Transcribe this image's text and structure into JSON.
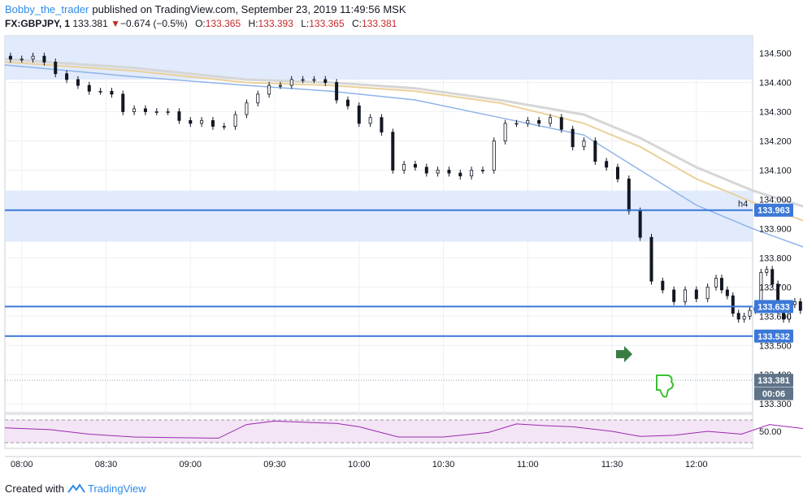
{
  "header": {
    "author": "Bobby_the_trader",
    "published": "published on TradingView.com, September 23, 2019 11:49:56 MSK",
    "symbol": "FX:GBPJPY, 1",
    "last": "133.381",
    "down_arrow": "▼",
    "change": "−0.674 (−0.5%)",
    "o_label": "O:",
    "o_value": "133.365",
    "h_label": "H:",
    "h_value": "133.393",
    "l_label": "L:",
    "l_value": "133.365",
    "c_label": "C:",
    "c_value": "133.381"
  },
  "footer": {
    "created_with": "Created with",
    "brand": "TradingView"
  },
  "colors": {
    "up_candle": "#ffffff",
    "down_candle": "#131722",
    "zone": "#dce8fb",
    "level_line": "#3b78d8",
    "ma_fast": "#8fb3e8",
    "ma_mid": "#ead19a",
    "ma_slow": "#d6d6d6",
    "rsi_line": "#9c27b0",
    "rsi_band": "#f3e5f5",
    "arrow_right": "#3a7d44",
    "thumb_down": "#3dbf35",
    "tag_blue": "#3b78d8",
    "tag_dark": "#5f7389"
  },
  "chart_data": {
    "type": "candlestick",
    "y_ticks": [
      "134.500",
      "134.400",
      "134.300",
      "134.200",
      "134.100",
      "134.000",
      "133.900",
      "133.800",
      "133.700",
      "133.600",
      "133.500",
      "133.400",
      "133.300"
    ],
    "x_ticks": [
      "08:00",
      "08:30",
      "09:00",
      "09:30",
      "10:00",
      "10:30",
      "11:00",
      "11:30",
      "12:00"
    ],
    "ylim": [
      133.27,
      134.56
    ],
    "xlim_minutes": [
      474,
      740
    ],
    "price_tags": [
      {
        "label": "133.963",
        "value": 133.963,
        "line": true
      },
      {
        "label": "133.633",
        "value": 133.633,
        "line": true
      },
      {
        "label": "133.532",
        "value": 133.532,
        "line": true
      },
      {
        "label": "133.381",
        "value": 133.381,
        "line": false
      },
      {
        "label": "00:06",
        "value": 133.335,
        "line": false
      }
    ],
    "annotation": "h4",
    "zones": [
      {
        "from": 134.41,
        "to": 134.56
      },
      {
        "from": 133.855,
        "to": 134.03
      }
    ],
    "close_path": [
      [
        474,
        134.49
      ],
      [
        478,
        134.48
      ],
      [
        482,
        134.48
      ],
      [
        486,
        134.49
      ],
      [
        490,
        134.47
      ],
      [
        494,
        134.43
      ],
      [
        498,
        134.41
      ],
      [
        502,
        134.39
      ],
      [
        506,
        134.37
      ],
      [
        510,
        134.37
      ],
      [
        514,
        134.36
      ],
      [
        518,
        134.3
      ],
      [
        522,
        134.31
      ],
      [
        526,
        134.3
      ],
      [
        530,
        134.3
      ],
      [
        534,
        134.3
      ],
      [
        538,
        134.27
      ],
      [
        542,
        134.26
      ],
      [
        546,
        134.27
      ],
      [
        550,
        134.25
      ],
      [
        554,
        134.25
      ],
      [
        558,
        134.29
      ],
      [
        562,
        134.33
      ],
      [
        566,
        134.36
      ],
      [
        570,
        134.39
      ],
      [
        574,
        134.39
      ],
      [
        578,
        134.41
      ],
      [
        582,
        134.41
      ],
      [
        586,
        134.41
      ],
      [
        590,
        134.4
      ],
      [
        594,
        134.34
      ],
      [
        598,
        134.32
      ],
      [
        602,
        134.26
      ],
      [
        606,
        134.28
      ],
      [
        610,
        134.23
      ],
      [
        614,
        134.1
      ],
      [
        618,
        134.12
      ],
      [
        622,
        134.11
      ],
      [
        626,
        134.09
      ],
      [
        630,
        134.1
      ],
      [
        634,
        134.09
      ],
      [
        638,
        134.08
      ],
      [
        642,
        134.1
      ],
      [
        646,
        134.1
      ],
      [
        650,
        134.2
      ],
      [
        654,
        134.26
      ],
      [
        658,
        134.26
      ],
      [
        662,
        134.27
      ],
      [
        666,
        134.26
      ],
      [
        670,
        134.28
      ],
      [
        674,
        134.24
      ],
      [
        678,
        134.18
      ],
      [
        682,
        134.2
      ],
      [
        686,
        134.13
      ],
      [
        690,
        134.11
      ],
      [
        694,
        134.07
      ],
      [
        698,
        133.96
      ],
      [
        702,
        133.87
      ],
      [
        706,
        133.72
      ],
      [
        710,
        133.69
      ],
      [
        714,
        133.65
      ],
      [
        718,
        133.69
      ],
      [
        722,
        133.66
      ],
      [
        726,
        133.7
      ]
    ],
    "close_path_tail": [
      [
        726,
        133.7
      ],
      [
        728,
        133.73
      ],
      [
        730,
        133.69
      ],
      [
        732,
        133.67
      ],
      [
        734,
        133.61
      ],
      [
        736,
        133.59
      ],
      [
        738,
        133.6
      ],
      [
        740,
        133.62
      ],
      [
        742,
        133.63
      ],
      [
        744,
        133.75
      ],
      [
        746,
        133.76
      ],
      [
        748,
        133.71
      ],
      [
        750,
        133.62
      ],
      [
        752,
        133.59
      ],
      [
        754,
        133.64
      ],
      [
        756,
        133.65
      ],
      [
        758,
        133.62
      ],
      [
        760,
        133.66
      ],
      [
        762,
        133.68
      ],
      [
        764,
        133.6
      ],
      [
        766,
        133.56
      ],
      [
        768,
        133.53
      ],
      [
        770,
        133.57
      ],
      [
        772,
        133.55
      ],
      [
        774,
        133.5
      ],
      [
        776,
        133.38
      ]
    ],
    "ma_fast_path": [
      [
        474,
        134.46
      ],
      [
        520,
        134.42
      ],
      [
        560,
        134.39
      ],
      [
        590,
        134.37
      ],
      [
        620,
        134.34
      ],
      [
        650,
        134.28
      ],
      [
        680,
        134.22
      ],
      [
        700,
        134.1
      ],
      [
        720,
        133.98
      ],
      [
        740,
        133.9
      ],
      [
        760,
        133.83
      ],
      [
        776,
        133.76
      ]
    ],
    "ma_mid_path": [
      [
        474,
        134.47
      ],
      [
        520,
        134.44
      ],
      [
        560,
        134.4
      ],
      [
        590,
        134.39
      ],
      [
        620,
        134.37
      ],
      [
        650,
        134.33
      ],
      [
        680,
        134.26
      ],
      [
        700,
        134.18
      ],
      [
        720,
        134.07
      ],
      [
        740,
        133.99
      ],
      [
        760,
        133.92
      ],
      [
        776,
        133.85
      ]
    ],
    "ma_slow_path": [
      [
        474,
        134.48
      ],
      [
        520,
        134.45
      ],
      [
        560,
        134.41
      ],
      [
        590,
        134.4
      ],
      [
        620,
        134.38
      ],
      [
        650,
        134.34
      ],
      [
        680,
        134.29
      ],
      [
        700,
        134.21
      ],
      [
        720,
        134.11
      ],
      [
        740,
        134.03
      ],
      [
        760,
        133.97
      ],
      [
        776,
        133.92
      ]
    ],
    "rsi": {
      "tick": "50.00",
      "ylim": [
        20,
        80
      ],
      "band": [
        30,
        70
      ],
      "path": [
        [
          474,
          56
        ],
        [
          490,
          53
        ],
        [
          504,
          45
        ],
        [
          520,
          40
        ],
        [
          534,
          39
        ],
        [
          550,
          38
        ],
        [
          560,
          62
        ],
        [
          570,
          68
        ],
        [
          580,
          66
        ],
        [
          592,
          64
        ],
        [
          600,
          58
        ],
        [
          614,
          40
        ],
        [
          630,
          40
        ],
        [
          646,
          48
        ],
        [
          656,
          63
        ],
        [
          666,
          60
        ],
        [
          676,
          58
        ],
        [
          690,
          50
        ],
        [
          700,
          41
        ],
        [
          712,
          43
        ],
        [
          724,
          50
        ],
        [
          736,
          45
        ],
        [
          746,
          62
        ],
        [
          756,
          56
        ],
        [
          766,
          50
        ],
        [
          776,
          40
        ]
      ]
    }
  }
}
